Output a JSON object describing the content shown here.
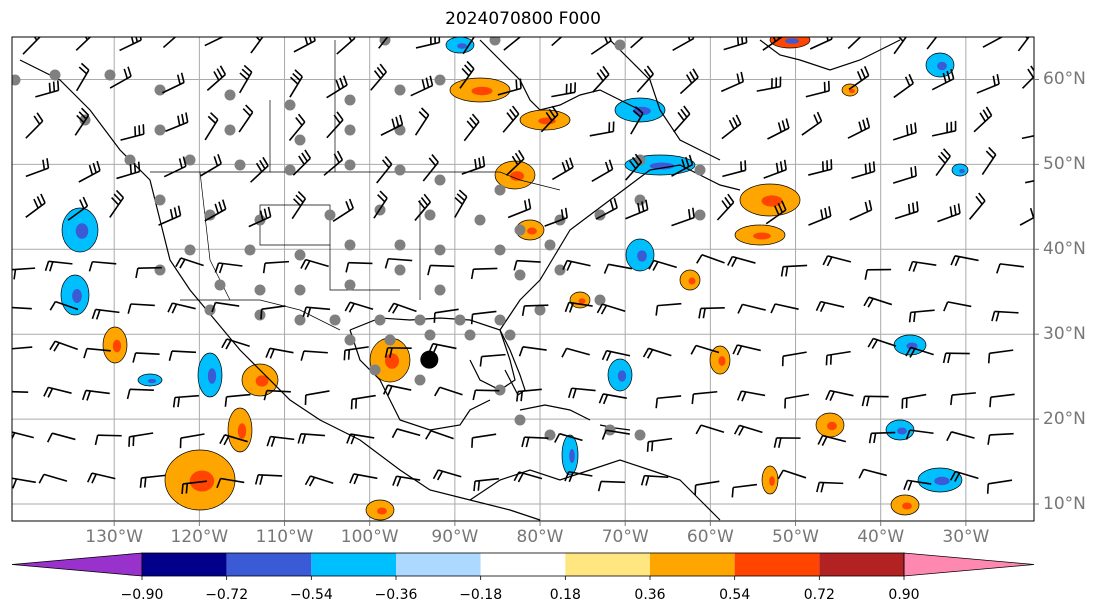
{
  "title": "2024070800 F000",
  "map": {
    "lon_labels": [
      "130°W",
      "120°W",
      "110°W",
      "100°W",
      "90°W",
      "80°W",
      "70°W",
      "60°W",
      "50°W",
      "40°W",
      "30°W"
    ],
    "lat_labels": [
      "60°N",
      "50°N",
      "40°N",
      "30°N",
      "20°N",
      "10°N"
    ],
    "lon_values": [
      -130,
      -120,
      -110,
      -100,
      -90,
      -80,
      -70,
      -60,
      -50,
      -40,
      -30
    ],
    "lat_values": [
      60,
      50,
      40,
      30,
      20,
      10
    ],
    "extent": {
      "lon_min": -142,
      "lon_max": -22,
      "lat_min": 8,
      "lat_max": 65
    },
    "grid": true,
    "marker": {
      "type": "black-dot",
      "lon": -93,
      "lat": 27
    }
  },
  "colorbar": {
    "tick_labels": [
      "−0.90",
      "−0.72",
      "−0.54",
      "−0.36",
      "−0.18",
      "0.18",
      "0.36",
      "0.54",
      "0.72",
      "0.90"
    ],
    "levels": [
      -0.9,
      -0.72,
      -0.54,
      -0.36,
      -0.18,
      0.18,
      0.36,
      0.54,
      0.72,
      0.9
    ],
    "colors": [
      "#9932cc",
      "#00008b",
      "#3b5bd6",
      "#00bfff",
      "#add8ff",
      "#ffffff",
      "#ffe680",
      "#ffa500",
      "#ff4500",
      "#b22222",
      "#ff88b0"
    ],
    "extend": "both"
  }
}
